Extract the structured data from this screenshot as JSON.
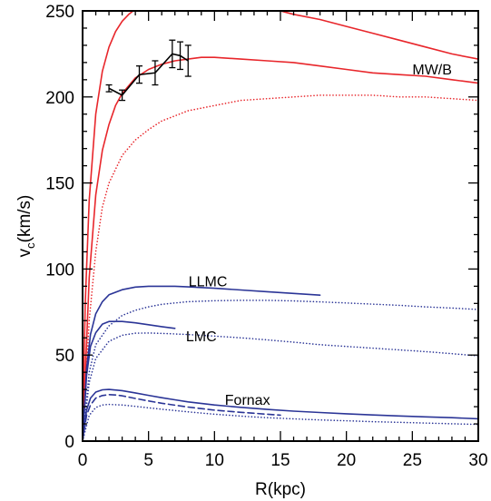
{
  "chart_data": {
    "type": "line",
    "title": "",
    "xlabel": "R(kpc)",
    "ylabel_main": "v",
    "ylabel_sub": "c",
    "ylabel_units": "(km/s)",
    "xlim": [
      0,
      30
    ],
    "ylim": [
      0,
      250
    ],
    "xticks": [
      0,
      5,
      10,
      15,
      20,
      25,
      30
    ],
    "yticks": [
      0,
      50,
      100,
      150,
      200,
      250
    ],
    "grid": false,
    "colors": {
      "red": "#e8262b",
      "blue": "#2b3597",
      "black": "#000000"
    },
    "annotations": [
      {
        "id": "mwb",
        "text": "MW/B",
        "x": 26.5,
        "y": 213
      },
      {
        "id": "llmc",
        "text": "LLMC",
        "x": 9.5,
        "y": 90
      },
      {
        "id": "lmc",
        "text": "LMC",
        "x": 9,
        "y": 58
      },
      {
        "id": "fornax",
        "text": "Fornax",
        "x": 12.5,
        "y": 21
      }
    ],
    "series": [
      {
        "id": "mw-upper",
        "color": "red",
        "style": "solid",
        "x": [
          0,
          0.2,
          0.5,
          1,
          1.5,
          2,
          2.5,
          3,
          3.5,
          4
        ],
        "y": [
          0,
          80,
          140,
          190,
          215,
          229,
          238,
          244,
          248,
          251
        ]
      },
      {
        "id": "mw-upper-tail",
        "color": "red",
        "style": "solid",
        "x": [
          14.5,
          16,
          18,
          20,
          22,
          24,
          26,
          28,
          30
        ],
        "y": [
          251,
          248,
          245,
          241,
          237,
          233,
          229,
          225,
          222
        ]
      },
      {
        "id": "mw-middle",
        "color": "red",
        "style": "solid",
        "x": [
          0,
          0.5,
          1,
          1.5,
          2,
          2.5,
          3,
          4,
          5,
          6,
          7,
          8,
          9,
          10,
          12,
          14,
          16,
          18,
          20,
          22,
          24,
          26,
          28,
          30
        ],
        "y": [
          0,
          95,
          143,
          169,
          184,
          195,
          202,
          211,
          216,
          219,
          221,
          222,
          223,
          223,
          222,
          221,
          220,
          218,
          216,
          214,
          213,
          212,
          210,
          208
        ]
      },
      {
        "id": "mw-dotted",
        "color": "red",
        "style": "dotted",
        "x": [
          0,
          0.5,
          1,
          1.5,
          2,
          3,
          4,
          5,
          6,
          8,
          10,
          12,
          14,
          16,
          18,
          20,
          22,
          24,
          26,
          28,
          30
        ],
        "y": [
          0,
          70,
          110,
          136,
          150,
          166,
          175,
          181,
          186,
          192,
          195,
          198,
          199,
          200,
          201,
          201,
          201,
          200,
          200,
          199,
          198
        ]
      },
      {
        "id": "llmc-solid",
        "color": "blue",
        "style": "solid",
        "x": [
          0,
          0.3,
          0.6,
          1,
          1.5,
          2,
          3,
          4,
          5,
          6,
          7,
          8,
          10,
          12,
          14,
          16,
          18
        ],
        "y": [
          0,
          42,
          62,
          74,
          81,
          85,
          88,
          89.5,
          90,
          90,
          90,
          89.6,
          88.8,
          87.8,
          86.8,
          85.8,
          84.8
        ]
      },
      {
        "id": "llmc-dotted",
        "color": "blue",
        "style": "dotted",
        "x": [
          0,
          0.5,
          1,
          2,
          3,
          4,
          5,
          6,
          8,
          10,
          12,
          14,
          16,
          18,
          20,
          22,
          24,
          26,
          28,
          30
        ],
        "y": [
          0,
          40,
          56,
          67,
          73,
          76,
          78,
          79.5,
          81,
          81.6,
          81.8,
          81.8,
          81.5,
          80.9,
          80.3,
          79.6,
          78.9,
          78.0,
          77.3,
          76.5
        ]
      },
      {
        "id": "lmc-solid",
        "color": "blue",
        "style": "solid",
        "x": [
          0,
          0.3,
          0.6,
          1,
          1.5,
          2,
          3,
          4,
          5,
          6,
          7
        ],
        "y": [
          0,
          38,
          55,
          63,
          68,
          69.5,
          69.5,
          68.7,
          67.6,
          66.5,
          65.5
        ]
      },
      {
        "id": "lmc-dotted",
        "color": "blue",
        "style": "dotted",
        "x": [
          0,
          0.5,
          1,
          2,
          3,
          4,
          5,
          6,
          8,
          10,
          12,
          14,
          16,
          18,
          20,
          22,
          24,
          26,
          28,
          30
        ],
        "y": [
          0,
          34,
          48,
          58,
          61.5,
          62.7,
          62.8,
          62.6,
          61.9,
          61.0,
          60.0,
          58.8,
          57.5,
          56.0,
          55.0,
          54.0,
          53.0,
          52.0,
          50.8,
          49.5
        ]
      },
      {
        "id": "fornax-solid",
        "color": "blue",
        "style": "solid",
        "x": [
          0,
          0.3,
          0.6,
          1,
          1.5,
          2,
          3,
          4,
          5,
          6,
          7,
          8,
          10,
          12,
          14,
          16,
          18,
          20,
          22,
          24,
          26,
          28,
          30
        ],
        "y": [
          0,
          18,
          25,
          28.5,
          29.8,
          30,
          29.3,
          28,
          26.6,
          25.2,
          24,
          22.8,
          21,
          19.6,
          18.4,
          17.4,
          16.6,
          15.9,
          15.2,
          14.6,
          14.1,
          13.6,
          13
        ]
      },
      {
        "id": "fornax-dashed",
        "color": "blue",
        "style": "dashed",
        "x": [
          0,
          0.3,
          0.6,
          1,
          1.5,
          2,
          2.5,
          3,
          4,
          5,
          6,
          8,
          10,
          12,
          14,
          15
        ],
        "y": [
          0,
          15,
          21,
          25,
          26.5,
          27,
          26.8,
          26.3,
          24.8,
          23.3,
          22,
          19.8,
          18,
          16.7,
          15.6,
          15.1
        ]
      },
      {
        "id": "fornax-dotted",
        "color": "blue",
        "style": "dotted",
        "x": [
          0,
          0.5,
          1,
          1.5,
          2,
          3,
          4,
          5,
          6,
          8,
          10,
          12,
          14,
          16,
          18,
          20,
          22,
          24,
          26,
          28,
          30
        ],
        "y": [
          0,
          15,
          19.5,
          21,
          21.3,
          21,
          20.2,
          19.3,
          18.5,
          17,
          15.6,
          14.5,
          13.6,
          12.9,
          12.3,
          11.8,
          11.3,
          10.9,
          10.5,
          10.1,
          9.7
        ]
      }
    ],
    "data_points": {
      "color": "black",
      "x": [
        2.0,
        3.0,
        4.3,
        5.5,
        6.8,
        7.4,
        8.0
      ],
      "y": [
        205,
        201,
        213,
        214,
        225,
        224,
        221
      ],
      "err": [
        2,
        3,
        5,
        7,
        8,
        8,
        9
      ]
    }
  }
}
